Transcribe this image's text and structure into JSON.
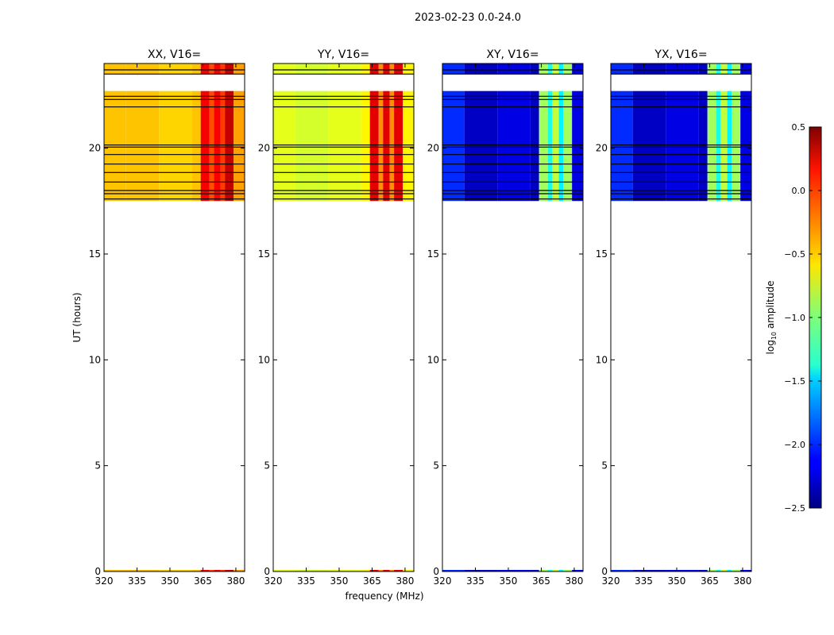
{
  "figure": {
    "suptitle": "2023-02-23 0.0-24.0",
    "xlabel": "frequency (MHz)",
    "ylabel": "UT (hours)"
  },
  "colorbar": {
    "label_main": "log",
    "label_sub": "10",
    "label_end": " amplitude",
    "range": [
      -2.5,
      0.5
    ],
    "ticks": [
      0.5,
      0.0,
      -0.5,
      -1.0,
      -1.5,
      -2.0,
      -2.5
    ],
    "tick_labels": [
      "0.5",
      "0.0",
      "−0.5",
      "−1.0",
      "−1.5",
      "−2.0",
      "−2.5"
    ],
    "colormap": "jet"
  },
  "chart_data": {
    "type": "heatmap",
    "x": {
      "label": "frequency (MHz)",
      "range": [
        320,
        384
      ],
      "ticks": [
        320,
        335,
        350,
        365,
        380
      ]
    },
    "y": {
      "label": "UT (hours)",
      "range": [
        0,
        24
      ],
      "ticks": [
        0,
        5,
        10,
        15,
        20
      ]
    },
    "data_time_range": [
      17.5,
      24.0
    ],
    "band_edges_mhz": [
      320,
      330,
      345,
      360,
      364,
      368,
      370,
      373,
      375,
      379,
      384
    ],
    "panels": [
      {
        "title": "XX, V16=",
        "band_values": [
          -0.45,
          -0.45,
          -0.5,
          -0.45,
          0.15,
          -0.1,
          0.15,
          -0.05,
          0.3,
          -0.35
        ]
      },
      {
        "title": "YY, V16=",
        "band_values": [
          -0.7,
          -0.75,
          -0.7,
          -0.6,
          0.2,
          -0.3,
          0.2,
          -0.3,
          0.2,
          -0.6
        ]
      },
      {
        "title": "XY, V16=",
        "band_values": [
          -2.0,
          -2.3,
          -2.2,
          -2.3,
          -0.9,
          -1.3,
          -0.8,
          -1.4,
          -0.9,
          -2.2
        ]
      },
      {
        "title": "YX, V16=",
        "band_values": [
          -2.0,
          -2.3,
          -2.2,
          -2.3,
          -0.9,
          -1.3,
          -0.8,
          -1.4,
          -0.9,
          -2.2
        ]
      }
    ],
    "flagged_hours": [
      17.6,
      17.85,
      18.0,
      18.4,
      18.85,
      19.25,
      19.7,
      20.05,
      20.15,
      21.95,
      22.3,
      22.45,
      23.5,
      23.7
    ],
    "missing_ranges": [
      [
        0,
        17.5
      ],
      [
        22.7,
        23.5
      ]
    ]
  }
}
